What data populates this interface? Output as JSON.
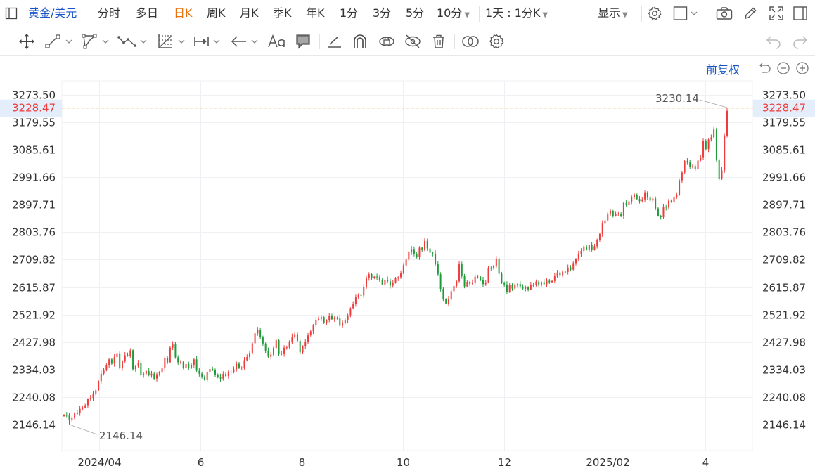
{
  "header": {
    "symbol": "黄金/美元",
    "periods": [
      {
        "label": "分时",
        "active": false
      },
      {
        "label": "多日",
        "active": false
      },
      {
        "label": "日K",
        "active": true
      },
      {
        "label": "周K",
        "active": false
      },
      {
        "label": "月K",
        "active": false
      },
      {
        "label": "季K",
        "active": false
      },
      {
        "label": "年K",
        "active": false
      },
      {
        "label": "1分",
        "active": false
      },
      {
        "label": "3分",
        "active": false
      },
      {
        "label": "5分",
        "active": false
      }
    ],
    "interval_select": "10分",
    "range_select": "1天 : 1分K",
    "display_label": "显示",
    "adjust_label": "前复权"
  },
  "toolbar_icons": [
    "crosshair-icon",
    "line-tool-icon",
    "polygon-tool-icon",
    "wave-tool-icon",
    "fibonacci-tool-icon",
    "measure-tool-icon",
    "arrow-tool-icon",
    "text-tool-icon",
    "comment-tool-icon",
    "brush-icon",
    "magnet-icon",
    "eye-lock-icon",
    "eye-hide-icon",
    "trash-icon",
    "link-icon",
    "settings-icon",
    "undo-icon",
    "redo-icon"
  ],
  "colors": {
    "up": "#ee3b3b",
    "down": "#1f9c3a",
    "price_line": "#f0a030",
    "grid": "#eef0f3",
    "accent": "#1a55c8",
    "active": "#e8730e"
  },
  "chart_data": {
    "type": "candlestick",
    "symbol": "黄金/美元",
    "period": "日K",
    "y_ticks": [
      "3273.50",
      "3179.55",
      "3085.61",
      "2991.66",
      "2897.71",
      "2803.76",
      "2709.82",
      "2615.87",
      "2521.92",
      "2427.98",
      "2334.03",
      "2240.08",
      "2146.14"
    ],
    "ylim": [
      2146.14,
      3273.5
    ],
    "x_ticks": [
      "2024/04",
      "6",
      "8",
      "10",
      "12",
      "2025/02",
      "4"
    ],
    "current_price": "3228.47",
    "max_label": "3230.14",
    "min_label": "2146.14",
    "x_tick_dates": [
      "2024-04-01",
      "2024-06-01",
      "2024-08-01",
      "2024-10-01",
      "2024-12-01",
      "2025-02-01",
      "2025-04-01"
    ],
    "date_range": [
      "2024-03-11",
      "2025-04-14"
    ],
    "closes": [
      2179,
      2177,
      2163,
      2168,
      2184,
      2185,
      2200,
      2204,
      2212,
      2233,
      2237,
      2252,
      2263,
      2295,
      2320,
      2331,
      2348,
      2369,
      2354,
      2377,
      2390,
      2339,
      2362,
      2383,
      2381,
      2400,
      2335,
      2346,
      2357,
      2315,
      2320,
      2328,
      2314,
      2320,
      2303,
      2318,
      2326,
      2338,
      2373,
      2359,
      2409,
      2420,
      2376,
      2359,
      2361,
      2339,
      2353,
      2339,
      2349,
      2369,
      2330,
      2320,
      2310,
      2300,
      2324,
      2336,
      2332,
      2317,
      2309,
      2303,
      2319,
      2312,
      2327,
      2324,
      2335,
      2354,
      2341,
      2341,
      2366,
      2377,
      2391,
      2424,
      2458,
      2470,
      2444,
      2423,
      2398,
      2378,
      2385,
      2408,
      2434,
      2388,
      2388,
      2409,
      2410,
      2430,
      2446,
      2455,
      2432,
      2393,
      2414,
      2428,
      2451,
      2465,
      2486,
      2503,
      2508,
      2513,
      2495,
      2503,
      2517,
      2506,
      2511,
      2511,
      2484,
      2494,
      2503,
      2520,
      2544,
      2558,
      2582,
      2589,
      2587,
      2615,
      2648,
      2660,
      2647,
      2652,
      2650,
      2640,
      2625,
      2641,
      2636,
      2621,
      2632,
      2646,
      2650,
      2663,
      2690,
      2710,
      2736,
      2746,
      2728,
      2718,
      2751,
      2742,
      2774,
      2748,
      2734,
      2731,
      2695,
      2660,
      2610,
      2575,
      2560,
      2576,
      2602,
      2620,
      2636,
      2694,
      2654,
      2618,
      2634,
      2627,
      2632,
      2652,
      2652,
      2640,
      2626,
      2632,
      2682,
      2681,
      2689,
      2712,
      2662,
      2631,
      2625,
      2599,
      2622,
      2611,
      2624,
      2627,
      2618,
      2611,
      2615,
      2608,
      2623,
      2623,
      2635,
      2625,
      2633,
      2626,
      2638,
      2633,
      2637,
      2653,
      2666,
      2657,
      2669,
      2668,
      2683,
      2676,
      2698,
      2711,
      2729,
      2740,
      2755,
      2745,
      2759,
      2744,
      2756,
      2776,
      2798,
      2833,
      2844,
      2868,
      2877,
      2860,
      2866,
      2867,
      2860,
      2904,
      2898,
      2909,
      2923,
      2933,
      2917,
      2910,
      2916,
      2940,
      2922,
      2912,
      2919,
      2885,
      2860,
      2855,
      2891,
      2888,
      2912,
      2908,
      2924,
      2931,
      2981,
      3008,
      3047,
      3044,
      3026,
      3030,
      3021,
      3049,
      3058,
      3117,
      3088,
      3121,
      3128,
      3155,
      3052,
      2986,
      3015,
      3133,
      3219
    ]
  }
}
